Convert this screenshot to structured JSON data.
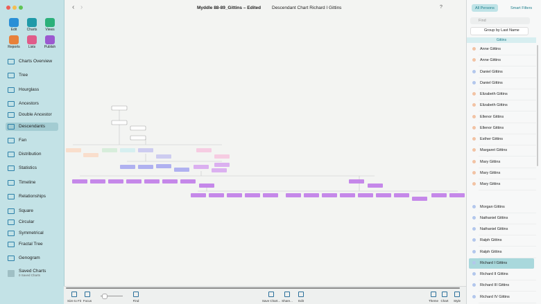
{
  "window": {
    "title": "Myddle 88-89_Gittins – Edited",
    "chart_title": "Descendant Chart Richard I Gittins"
  },
  "toolbar": [
    "Edit",
    "Charts",
    "Views",
    "Reports",
    "Lists",
    "Publish"
  ],
  "sidebar": {
    "items": [
      "Charts Overview",
      "Tree",
      "Hourglass",
      "Ancestors",
      "Double Ancestor",
      "Descendants",
      "Fan",
      "Distribution",
      "Statistics",
      "Timeline",
      "Relationships",
      "Square",
      "Circular",
      "Symmetrical",
      "Fractal Tree",
      "Genogram"
    ],
    "selected": 5,
    "saved_label": "Saved Charts",
    "saved_count": "0 Saved Charts"
  },
  "persons": {
    "tabs": [
      "All Persons",
      "Smart Filters"
    ],
    "search_placeholder": "Find",
    "group_by": "Group by Last Name",
    "group": "Gittins",
    "rows": [
      {
        "name": "Anne Gittins",
        "color": "#f2c3a4"
      },
      {
        "name": "Anne Gittins",
        "color": "#f2c3a4"
      },
      {
        "name": "Daniel Gittins",
        "color": "#b3c7ec"
      },
      {
        "name": "Daniel Gittins",
        "color": "#b3c7ec"
      },
      {
        "name": "Elizabeth Gittins",
        "color": "#f2c3a4"
      },
      {
        "name": "Elizabeth Gittins",
        "color": "#f2c3a4"
      },
      {
        "name": "Ellenor Gittins",
        "color": "#f2c3a4"
      },
      {
        "name": "Ellenor Gittins",
        "color": "#f2c3a4"
      },
      {
        "name": "Esther Gittins",
        "color": "#f2c3a4"
      },
      {
        "name": "Margaret Gittins",
        "color": "#f2c3a4"
      },
      {
        "name": "Mary Gittins",
        "color": "#f2c3a4"
      },
      {
        "name": "Mary Gittins",
        "color": "#f2c3a4"
      },
      {
        "name": "Mary Gittins",
        "color": "#f2c3a4"
      },
      {
        "name": "Morgan Gittins",
        "color": "#b3c7ec"
      },
      {
        "name": "Nathaniel Gittins",
        "color": "#b3c7ec"
      },
      {
        "name": "Nathaniel Gittins",
        "color": "#b3c7ec"
      },
      {
        "name": "Ralph Gittins",
        "color": "#b3c7ec"
      },
      {
        "name": "Ralph Gittins",
        "color": "#b3c7ec"
      },
      {
        "name": "Richard I Gittins",
        "color": "#b3c7ec"
      },
      {
        "name": "Richard II Gittins",
        "color": "#b3c7ec"
      },
      {
        "name": "Richard III Gittins",
        "color": "#b3c7ec"
      },
      {
        "name": "Richard IV Gittins",
        "color": "#b3c7ec"
      }
    ],
    "selected": 18
  },
  "bottom": {
    "left": [
      "Size to Fit",
      "Focus",
      "Find"
    ],
    "center": [
      "Save Chart...",
      "Share...",
      "Edit"
    ],
    "right": [
      "Theme",
      "Chart",
      "Style"
    ]
  }
}
